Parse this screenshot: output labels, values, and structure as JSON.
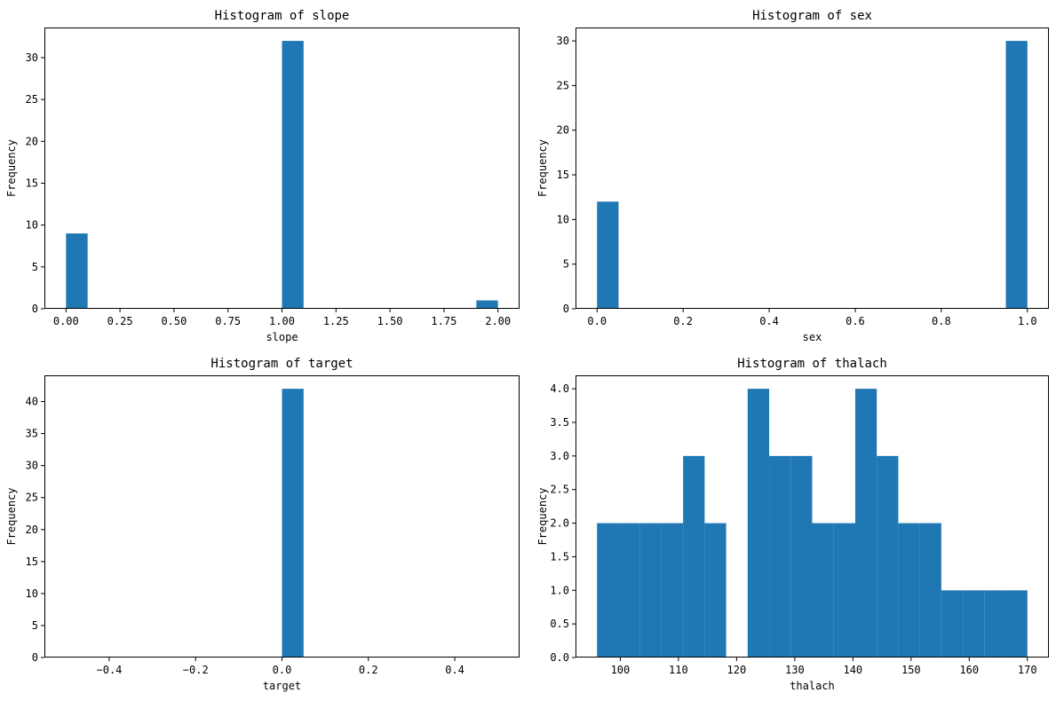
{
  "figure": {
    "bar_color": "#1f77b4",
    "ylabel_common": "Frequency"
  },
  "chart_data": [
    {
      "type": "bar",
      "title": "Histogram of slope",
      "xlabel": "slope",
      "ylabel": "Frequency",
      "xlim": [
        -0.1,
        2.1
      ],
      "ylim": [
        0,
        33.6
      ],
      "xticks": [
        0.0,
        0.25,
        0.5,
        0.75,
        1.0,
        1.25,
        1.5,
        1.75,
        2.0
      ],
      "xtick_labels": [
        "0.00",
        "0.25",
        "0.50",
        "0.75",
        "1.00",
        "1.25",
        "1.50",
        "1.75",
        "2.00"
      ],
      "yticks": [
        0,
        5,
        10,
        15,
        20,
        25,
        30
      ],
      "ytick_labels": [
        "0",
        "5",
        "10",
        "15",
        "20",
        "25",
        "30"
      ],
      "bins": [
        {
          "x0": 0.0,
          "x1": 0.1,
          "count": 9
        },
        {
          "x0": 1.0,
          "x1": 1.1,
          "count": 32
        },
        {
          "x0": 1.9,
          "x1": 2.0,
          "count": 1
        }
      ]
    },
    {
      "type": "bar",
      "title": "Histogram of sex",
      "xlabel": "sex",
      "ylabel": "Frequency",
      "xlim": [
        -0.05,
        1.05
      ],
      "ylim": [
        0,
        31.5
      ],
      "xticks": [
        0.0,
        0.2,
        0.4,
        0.6,
        0.8,
        1.0
      ],
      "xtick_labels": [
        "0.0",
        "0.2",
        "0.4",
        "0.6",
        "0.8",
        "1.0"
      ],
      "yticks": [
        0,
        5,
        10,
        15,
        20,
        25,
        30
      ],
      "ytick_labels": [
        "0",
        "5",
        "10",
        "15",
        "20",
        "25",
        "30"
      ],
      "bins": [
        {
          "x0": 0.0,
          "x1": 0.05,
          "count": 12
        },
        {
          "x0": 0.95,
          "x1": 1.0,
          "count": 30
        }
      ]
    },
    {
      "type": "bar",
      "title": "Histogram of target",
      "xlabel": "target",
      "ylabel": "Frequency",
      "xlim": [
        -0.55,
        0.55
      ],
      "ylim": [
        0,
        44.1
      ],
      "xticks": [
        -0.4,
        -0.2,
        0.0,
        0.2,
        0.4
      ],
      "xtick_labels": [
        "−0.4",
        "−0.2",
        "0.0",
        "0.2",
        "0.4"
      ],
      "yticks": [
        0,
        5,
        10,
        15,
        20,
        25,
        30,
        35,
        40
      ],
      "ytick_labels": [
        "0",
        "5",
        "10",
        "15",
        "20",
        "25",
        "30",
        "35",
        "40"
      ],
      "bins": [
        {
          "x0": 0.0,
          "x1": 0.05,
          "count": 42
        }
      ]
    },
    {
      "type": "bar",
      "title": "Histogram of thalach",
      "xlabel": "thalach",
      "ylabel": "Frequency",
      "xlim": [
        92.3,
        173.7
      ],
      "ylim": [
        0,
        4.2
      ],
      "xticks": [
        100,
        110,
        120,
        130,
        140,
        150,
        160,
        170
      ],
      "xtick_labels": [
        "100",
        "110",
        "120",
        "130",
        "140",
        "150",
        "160",
        "170"
      ],
      "yticks": [
        0,
        0.5,
        1,
        1.5,
        2,
        2.5,
        3,
        3.5,
        4
      ],
      "ytick_labels": [
        "0.0",
        "0.5",
        "1.0",
        "1.5",
        "2.0",
        "2.5",
        "3.0",
        "3.5",
        "4.0"
      ],
      "bins": [
        {
          "x0": 96.0,
          "x1": 99.7,
          "count": 2
        },
        {
          "x0": 99.7,
          "x1": 103.4,
          "count": 2
        },
        {
          "x0": 103.4,
          "x1": 107.1,
          "count": 2
        },
        {
          "x0": 107.1,
          "x1": 110.8,
          "count": 2
        },
        {
          "x0": 110.8,
          "x1": 114.5,
          "count": 3
        },
        {
          "x0": 114.5,
          "x1": 118.2,
          "count": 2
        },
        {
          "x0": 118.2,
          "x1": 121.9,
          "count": 0
        },
        {
          "x0": 121.9,
          "x1": 125.6,
          "count": 4
        },
        {
          "x0": 125.6,
          "x1": 129.3,
          "count": 3
        },
        {
          "x0": 129.3,
          "x1": 133.0,
          "count": 3
        },
        {
          "x0": 133.0,
          "x1": 136.7,
          "count": 2
        },
        {
          "x0": 136.7,
          "x1": 140.4,
          "count": 2
        },
        {
          "x0": 140.4,
          "x1": 144.1,
          "count": 4
        },
        {
          "x0": 144.1,
          "x1": 147.8,
          "count": 3
        },
        {
          "x0": 147.8,
          "x1": 151.5,
          "count": 2
        },
        {
          "x0": 151.5,
          "x1": 155.2,
          "count": 2
        },
        {
          "x0": 155.2,
          "x1": 158.9,
          "count": 1
        },
        {
          "x0": 158.9,
          "x1": 162.6,
          "count": 1
        },
        {
          "x0": 162.6,
          "x1": 166.3,
          "count": 1
        },
        {
          "x0": 166.3,
          "x1": 170.0,
          "count": 1
        }
      ]
    }
  ]
}
